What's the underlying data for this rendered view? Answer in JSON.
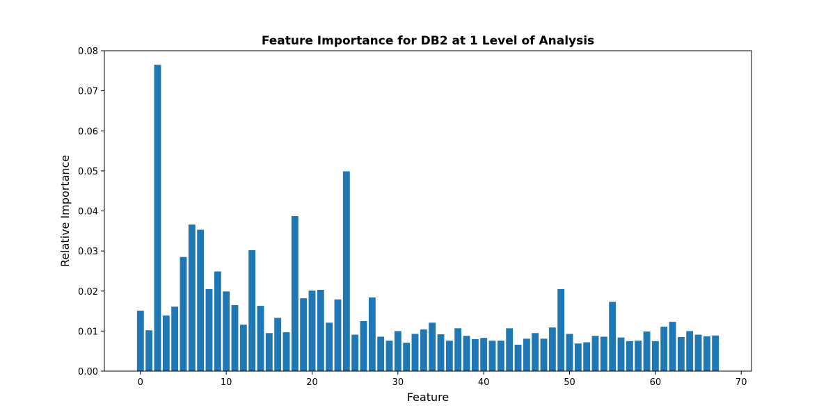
{
  "chart_data": {
    "type": "bar",
    "title": "Feature Importance for DB2 at 1 Level of Analysis",
    "xlabel": "Feature",
    "ylabel": "Relative Importance",
    "xlim": [
      -4.2,
      71.2
    ],
    "ylim": [
      0,
      0.08
    ],
    "x_ticks": [
      0,
      10,
      20,
      30,
      40,
      50,
      60,
      70
    ],
    "y_ticks": [
      0,
      0.01,
      0.02,
      0.03,
      0.04,
      0.05,
      0.06,
      0.07,
      0.08
    ],
    "x_tick_labels": [
      "0",
      "10",
      "20",
      "30",
      "40",
      "50",
      "60",
      "70"
    ],
    "y_tick_labels": [
      "0.00",
      "0.01",
      "0.02",
      "0.03",
      "0.04",
      "0.05",
      "0.06",
      "0.07",
      "0.08"
    ],
    "bar_color": "#1f77b4",
    "x": [
      0,
      1,
      2,
      3,
      4,
      5,
      6,
      7,
      8,
      9,
      10,
      11,
      12,
      13,
      14,
      15,
      16,
      17,
      18,
      19,
      20,
      21,
      22,
      23,
      24,
      25,
      26,
      27,
      28,
      29,
      30,
      31,
      32,
      33,
      34,
      35,
      36,
      37,
      38,
      39,
      40,
      41,
      42,
      43,
      44,
      45,
      46,
      47,
      48,
      49,
      50,
      51,
      52,
      53,
      54,
      55,
      56,
      57,
      58,
      59,
      60,
      61,
      62,
      63,
      64,
      65,
      66,
      67
    ],
    "values": [
      0.0151,
      0.0102,
      0.0765,
      0.0139,
      0.0161,
      0.0285,
      0.0366,
      0.0353,
      0.0205,
      0.0249,
      0.0199,
      0.0165,
      0.0116,
      0.0302,
      0.0163,
      0.0095,
      0.0133,
      0.0097,
      0.0387,
      0.0182,
      0.0201,
      0.0203,
      0.0121,
      0.0179,
      0.0499,
      0.0091,
      0.0125,
      0.0184,
      0.0086,
      0.0076,
      0.01,
      0.0071,
      0.0093,
      0.0104,
      0.0121,
      0.0092,
      0.0076,
      0.0107,
      0.0088,
      0.008,
      0.0083,
      0.0076,
      0.0076,
      0.0107,
      0.0066,
      0.0081,
      0.0095,
      0.0081,
      0.0109,
      0.0205,
      0.0093,
      0.0069,
      0.0072,
      0.0088,
      0.0086,
      0.0173,
      0.0084,
      0.0075,
      0.0076,
      0.0099,
      0.0075,
      0.0111,
      0.0123,
      0.0085,
      0.01,
      0.0091,
      0.0087,
      0.0089
    ]
  }
}
